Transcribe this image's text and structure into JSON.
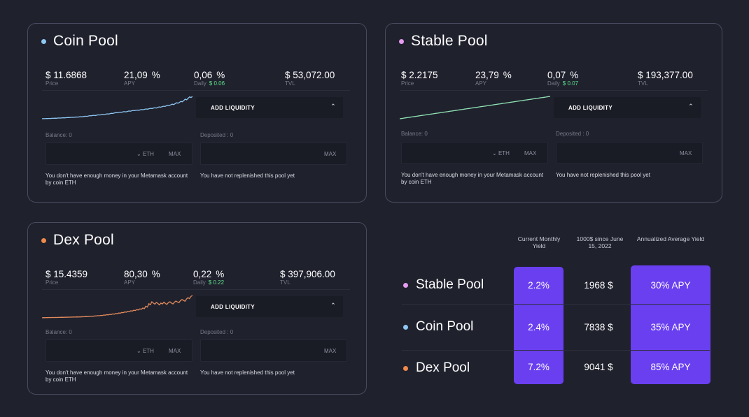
{
  "pools": [
    {
      "id": "coin",
      "name": "Coin Pool",
      "dot_color": "#8ec7f2",
      "line_color": "#8ec7f2",
      "price": "$ 11.6868",
      "price_label": "Price",
      "apy": "21,09",
      "apy_unit": "%",
      "apy_label": "APY",
      "daily": "0,06",
      "daily_unit": "%",
      "daily_label": "Daily",
      "daily_usd": "$ 0.06",
      "tvl": "$ 53,072.00",
      "tvl_label": "TVL",
      "add_liquidity": "ADD LIQUIDITY",
      "balance_label": "Balance: 0",
      "deposited_label": "Deposited : 0",
      "currency": "ETH",
      "max_label": "MAX",
      "msg_balance": "You don't have enough money in your Metamask account by coin ETH",
      "msg_deposit": "You have not replenished this pool yet",
      "series": [
        2,
        2.5,
        2.2,
        3,
        2.8,
        3.4,
        3.2,
        4,
        3.8,
        4.5,
        4.2,
        5,
        5.5,
        5.2,
        6,
        6.4,
        6.1,
        7,
        7.6,
        7.2,
        8,
        8.4,
        8.1,
        9,
        9.6,
        9.2,
        10.5,
        11,
        10.6,
        12,
        13,
        12.5,
        14,
        15.5,
        15,
        16.5,
        17,
        16.2,
        18,
        19,
        18.4,
        20,
        21.5,
        20.8,
        22,
        23.5,
        22.6,
        24.5,
        26,
        25.2,
        27.5,
        29,
        28,
        30,
        31,
        30.2,
        32.5,
        33,
        32.2,
        34,
        36,
        35,
        37,
        38.5,
        37.6,
        39,
        40,
        39.2,
        41,
        42.5,
        41.6,
        43.5,
        45,
        44,
        46,
        47.5,
        46.6,
        48.5,
        50,
        49,
        52,
        54,
        52.5,
        55,
        57,
        56,
        59,
        61,
        60,
        63,
        66,
        64,
        68,
        72,
        70,
        74,
        78,
        76,
        82,
        88,
        85,
        92,
        98,
        95,
        100
      ]
    },
    {
      "id": "stable",
      "name": "Stable Pool",
      "dot_color": "#e69cf0",
      "line_color": "#8fe3b4",
      "price": "$ 2.2175",
      "price_label": "Price",
      "apy": "23,79",
      "apy_unit": "%",
      "apy_label": "APY",
      "daily": "0,07",
      "daily_unit": "%",
      "daily_label": "Daily",
      "daily_usd": "$ 0.07",
      "tvl": "$ 193,377.00",
      "tvl_label": "TVL",
      "add_liquidity": "ADD LIQUIDITY",
      "balance_label": "Balance: 0",
      "deposited_label": "Deposited : 0",
      "currency": "ETH",
      "max_label": "MAX",
      "msg_balance": "You don't have enough money in your Metamask account by coin ETH",
      "msg_deposit": "You have not replenished this pool yet",
      "series": [
        0,
        1,
        2,
        3,
        4,
        5,
        6,
        7,
        8,
        9,
        10,
        11,
        12,
        13,
        14,
        15,
        16,
        17,
        18,
        19,
        20,
        21,
        22,
        23,
        24,
        25,
        26,
        27,
        28,
        29,
        30,
        31,
        32,
        33,
        34,
        35,
        36,
        37,
        38,
        39,
        40,
        41,
        42,
        43,
        44,
        45,
        46,
        47,
        48,
        49,
        50,
        51,
        52,
        53,
        54,
        55,
        56,
        57,
        58,
        59,
        60,
        61,
        62,
        63,
        64,
        65,
        66,
        67,
        68,
        69,
        70,
        71,
        72,
        73,
        74,
        75,
        76,
        77,
        78,
        79,
        80,
        81,
        82,
        83,
        84,
        85,
        86,
        87,
        88,
        89,
        90,
        91,
        92,
        93,
        94,
        95,
        96,
        97,
        98,
        99,
        100
      ]
    },
    {
      "id": "dex",
      "name": "Dex Pool",
      "dot_color": "#f08a4b",
      "line_color": "#e38b5c",
      "price": "$ 15.4359",
      "price_label": "Price",
      "apy": "80,30",
      "apy_unit": "%",
      "apy_label": "APY",
      "daily": "0,22",
      "daily_unit": "%",
      "daily_label": "Daily",
      "daily_usd": "$ 0.22",
      "tvl": "$ 397,906.00",
      "tvl_label": "TVL",
      "add_liquidity": "ADD LIQUIDITY",
      "balance_label": "Balance: 0",
      "deposited_label": "Deposited : 0",
      "currency": "ETH",
      "max_label": "MAX",
      "msg_balance": "You don't have enough money in your Metamask account by coin ETH",
      "msg_deposit": "You have not replenished this pool yet",
      "series": [
        0,
        1,
        0.5,
        1.2,
        0.8,
        1.5,
        1.1,
        1.8,
        1.4,
        2,
        1.6,
        2.2,
        1.9,
        2.5,
        2.1,
        2.8,
        2.4,
        3,
        2.7,
        3.3,
        3,
        3.6,
        3.3,
        4,
        3.7,
        4.4,
        4.1,
        5,
        4.6,
        5.6,
        5.2,
        6.4,
        6,
        7.4,
        7,
        8.5,
        8,
        9.8,
        9.2,
        11,
        10.4,
        12.5,
        11.8,
        14,
        13.2,
        15.6,
        14.8,
        17.4,
        16.4,
        19.5,
        18.4,
        21.6,
        20.4,
        24,
        22.8,
        26.5,
        25,
        29,
        27.6,
        31.5,
        30,
        34,
        32.5,
        36.5,
        35,
        40,
        38,
        44,
        41,
        52,
        48,
        63,
        58,
        72,
        66,
        61,
        69,
        64,
        58,
        66,
        62,
        70,
        64,
        60,
        68,
        72,
        66,
        62,
        70,
        75,
        71,
        68,
        77,
        82,
        78,
        74,
        84,
        90,
        86,
        96,
        100
      ]
    }
  ],
  "summary": {
    "headers": {
      "monthly": "Current Monthly Yield",
      "since": "1000$ since June 15, 2022",
      "annualized": "Annualized Average Yield"
    },
    "rows": [
      {
        "name": "Stable Pool",
        "dot_color": "#e69cf0",
        "monthly": "2.2%",
        "since": "1968 $",
        "annualized": "30% APY"
      },
      {
        "name": "Coin Pool",
        "dot_color": "#8ec7f2",
        "monthly": "2.4%",
        "since": "7838 $",
        "annualized": "35% APY"
      },
      {
        "name": "Dex Pool",
        "dot_color": "#f08a4b",
        "monthly": "7.2%",
        "since": "9041 $",
        "annualized": "85% APY"
      }
    ],
    "highlight_color": "#6a3ff0"
  }
}
